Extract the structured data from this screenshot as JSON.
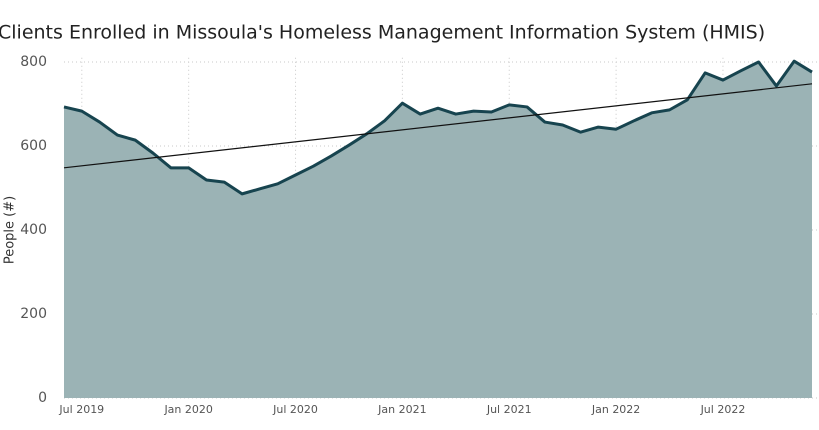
{
  "chart_data": {
    "type": "area",
    "title": "Clients Enrolled in Missoula's Homeless Management Information System (HMIS)",
    "y_label": "People (#)",
    "categories": [
      null,
      "Jul 2019",
      null,
      null,
      null,
      null,
      null,
      "Jan 2020",
      null,
      null,
      null,
      null,
      null,
      "Jul 2020",
      null,
      null,
      null,
      null,
      null,
      "Jan 2021",
      null,
      null,
      null,
      null,
      null,
      "Jul 2021",
      null,
      null,
      null,
      null,
      null,
      "Jan 2022",
      null,
      null,
      null,
      null,
      null,
      "Jul 2022",
      null,
      null,
      null,
      null,
      null
    ],
    "series": [
      {
        "name": "Clients",
        "color": "#17444f",
        "fill": "#9bb3b5",
        "values": [
          693,
          683,
          657,
          626,
          614,
          583,
          548,
          548,
          519,
          514,
          486,
          498,
          510,
          531,
          552,
          576,
          602,
          629,
          660,
          702,
          676,
          690,
          676,
          683,
          681,
          698,
          693,
          657,
          650,
          633,
          645,
          640,
          660,
          679,
          686,
          710,
          774,
          757,
          779,
          800,
          743,
          802,
          776
        ]
      }
    ],
    "trendline": {
      "color": "#111111",
      "values": [
        548,
        748
      ]
    },
    "ylim": [
      0,
      810
    ],
    "yticks": [
      0,
      200,
      400,
      600,
      800
    ],
    "grid": true
  }
}
